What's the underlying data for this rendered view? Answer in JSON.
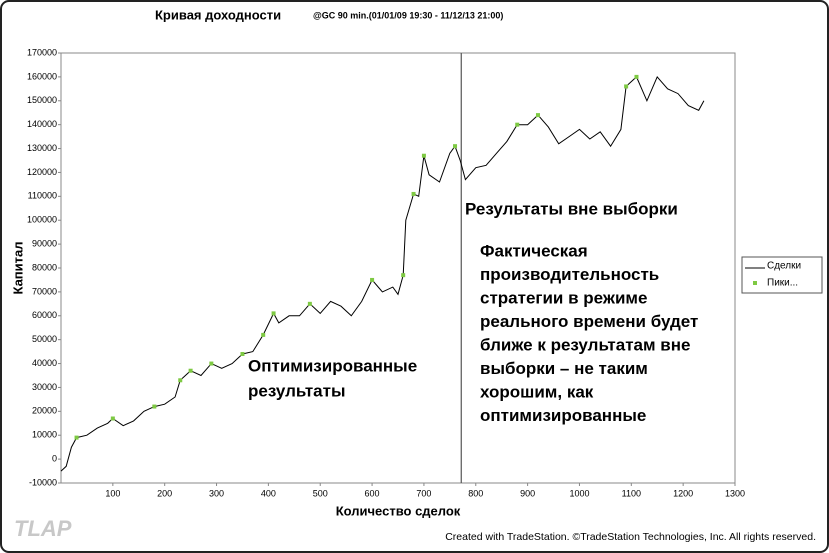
{
  "chart_data": {
    "type": "line",
    "title": "Кривая доходности",
    "subtitle": "@GC 90 min.(01/01/09 19:30 - 11/12/13 21:00)",
    "y_label": "Капитал",
    "x_label": "Количество сделок",
    "xlim": [
      0,
      1300
    ],
    "xticks": [
      100,
      200,
      300,
      400,
      500,
      600,
      700,
      800,
      900,
      1000,
      1100,
      1200,
      1300
    ],
    "ylim": [
      -10000,
      170000
    ],
    "yticks": [
      -10000,
      0,
      10000,
      20000,
      30000,
      40000,
      50000,
      60000,
      70000,
      80000,
      90000,
      100000,
      110000,
      120000,
      130000,
      140000,
      150000,
      160000,
      170000
    ],
    "grid": false,
    "legend": "right",
    "divider_x": 772,
    "series": [
      {
        "name": "Сделки",
        "color": "#000000",
        "marker": "line",
        "x": [
          0,
          10,
          20,
          30,
          50,
          70,
          90,
          100,
          120,
          140,
          160,
          180,
          200,
          220,
          230,
          250,
          270,
          290,
          310,
          330,
          350,
          370,
          390,
          410,
          420,
          440,
          460,
          480,
          500,
          520,
          540,
          560,
          580,
          600,
          620,
          640,
          650,
          660,
          665,
          680,
          690,
          700,
          710,
          730,
          750,
          760,
          770,
          780,
          800,
          820,
          840,
          860,
          880,
          900,
          920,
          940,
          960,
          980,
          1000,
          1020,
          1040,
          1060,
          1080,
          1090,
          1110,
          1130,
          1150,
          1170,
          1190,
          1210,
          1230,
          1240
        ],
        "values": [
          -5000,
          -3000,
          5000,
          9000,
          10000,
          13000,
          15000,
          17000,
          14000,
          16000,
          20000,
          22000,
          23000,
          26000,
          33000,
          37000,
          35000,
          40000,
          38000,
          40000,
          44000,
          45000,
          52000,
          61000,
          57000,
          60000,
          60000,
          65000,
          61000,
          66000,
          64000,
          60000,
          66000,
          75000,
          70000,
          72000,
          69000,
          77000,
          100000,
          111000,
          110000,
          127000,
          119000,
          116000,
          128000,
          131000,
          125000,
          117000,
          122000,
          123000,
          128000,
          133000,
          140000,
          140000,
          144000,
          139000,
          132000,
          135000,
          138000,
          134000,
          137000,
          131000,
          138000,
          156000,
          160000,
          150000,
          160000,
          155000,
          153000,
          148000,
          146000,
          150000
        ]
      },
      {
        "name": "Пики...",
        "color": "#7ec943",
        "marker": "square",
        "x": [
          30,
          100,
          180,
          230,
          250,
          290,
          350,
          390,
          410,
          480,
          600,
          660,
          680,
          700,
          760,
          880,
          920,
          1090,
          1110
        ],
        "values": [
          9000,
          17000,
          22000,
          33000,
          37000,
          40000,
          44000,
          52000,
          61000,
          65000,
          75000,
          77000,
          111000,
          127000,
          131000,
          140000,
          144000,
          156000,
          160000
        ]
      }
    ],
    "annotations": {
      "out_of_sample": "Результаты вне выборки",
      "note": [
        "Фактическая",
        "производительность",
        "стратегии в режиме",
        "реального времени будет",
        "ближе к результатам вне",
        "выборки – не таким",
        "хорошим, как",
        "оптимизированные"
      ],
      "optimized": [
        "Оптимизированные",
        "результаты"
      ]
    },
    "watermark": "TLAP",
    "footer": "Created with TradeStation. ©TradeStation Technologies, Inc. All rights reserved."
  }
}
